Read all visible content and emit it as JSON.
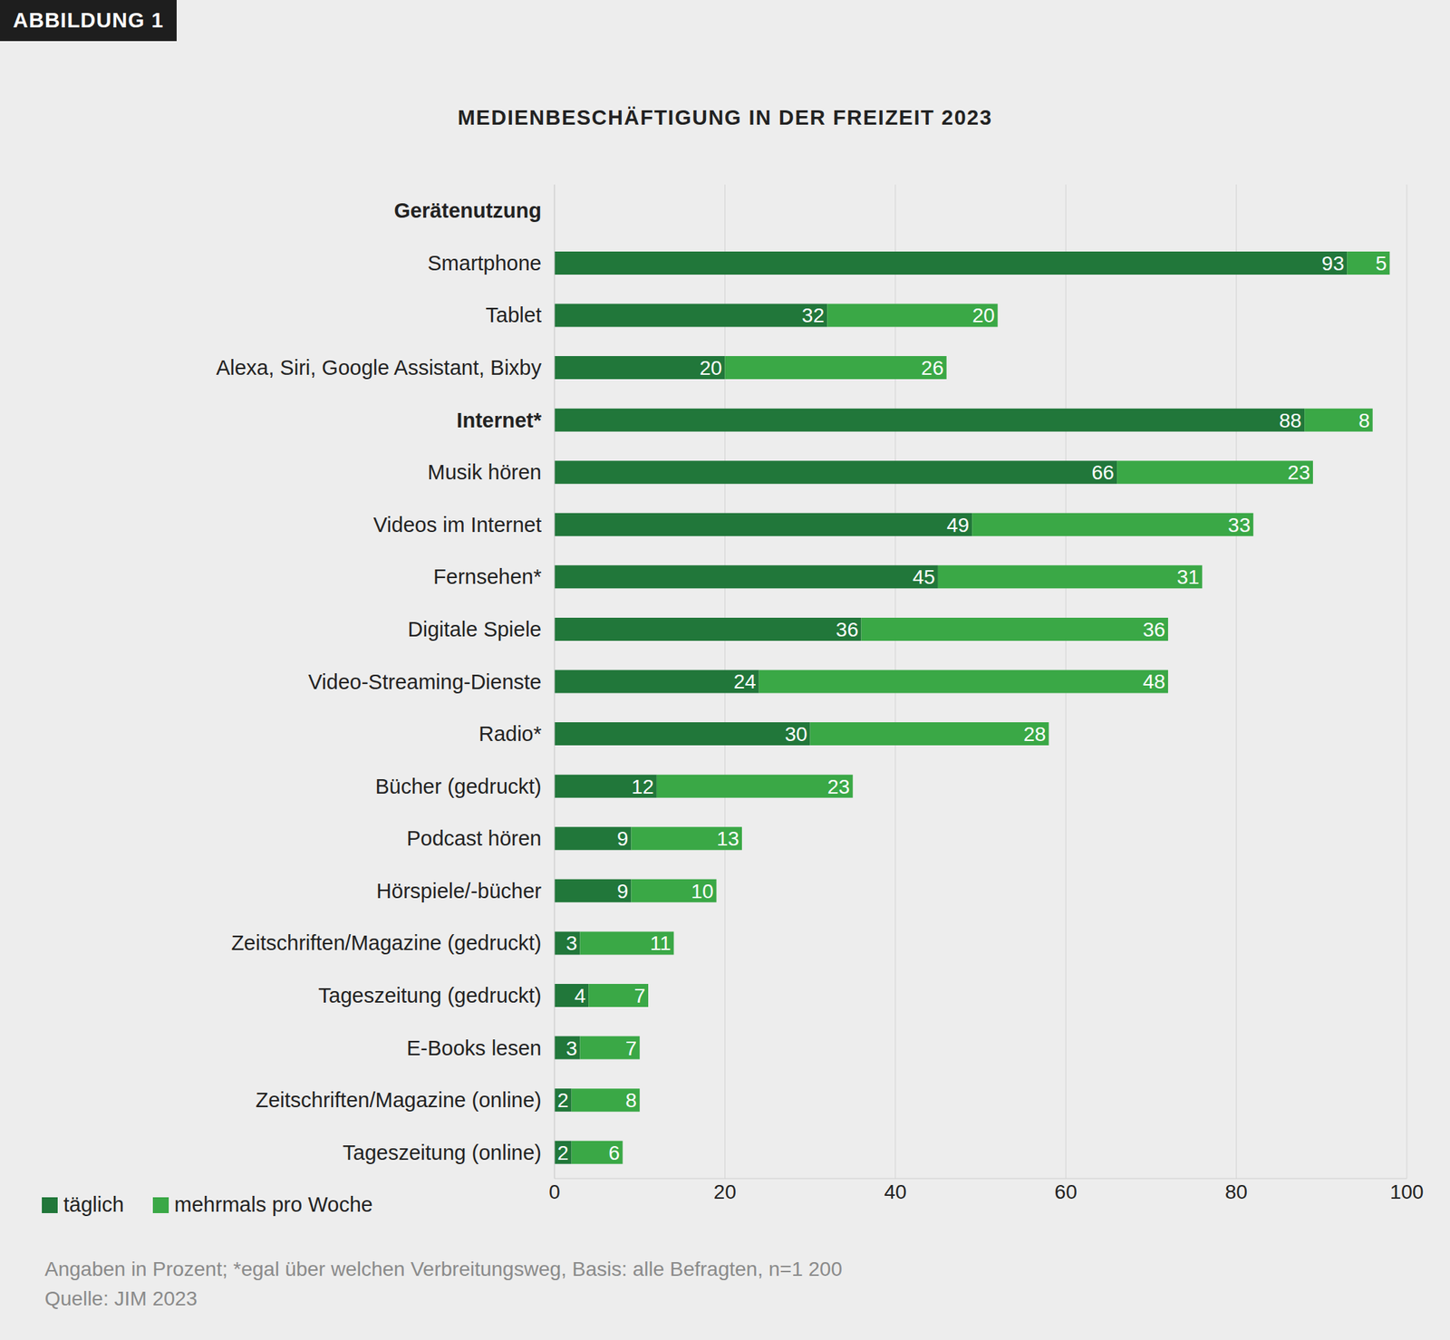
{
  "chart_data": {
    "type": "bar",
    "title": "MEDIENBESCHÄFTIGUNG IN DER FREIZEIT 2023",
    "figure_label": "ABBILDUNG 1",
    "note": "Angaben in Prozent; *egal über welchen Verbreitungsweg, Basis: alle Befragten, n=1 200",
    "source": "Quelle: JIM 2023",
    "categories": [
      "Gerätenutzung",
      "Smartphone",
      "Tablet",
      "Alexa, Siri, Google Assistant, Bixby",
      "Internet*",
      "Musik hören",
      "Videos im Internet",
      "Fernsehen*",
      "Digitale Spiele",
      "Video-Streaming-Dienste",
      "Radio*",
      "Bücher (gedruckt)",
      "Podcast hören",
      "Hörspiele/-bücher",
      "Zeitschriften/Magazine (gedruckt)",
      "Tageszeitung (gedruckt)",
      "E-Books lesen",
      "Zeitschriften/Magazine (online)",
      "Tageszeitung (online)"
    ],
    "series": [
      {
        "name": "täglich",
        "color": "#21773a",
        "values": [
          null,
          93,
          32,
          20,
          88,
          66,
          49,
          45,
          36,
          24,
          30,
          12,
          9,
          9,
          3,
          4,
          3,
          2,
          2
        ]
      },
      {
        "name": "mehrmals pro Woche",
        "color": "#3aa846",
        "values": [
          null,
          5,
          20,
          26,
          8,
          23,
          33,
          31,
          36,
          48,
          28,
          23,
          13,
          10,
          11,
          7,
          7,
          8,
          6
        ]
      }
    ],
    "xlim": [
      0,
      100
    ],
    "xticks": [
      0,
      20,
      40,
      60,
      80,
      100
    ],
    "orientation": "horizontal",
    "stacked": true,
    "data_labels": true,
    "grid": true,
    "legend": "bottom left"
  }
}
